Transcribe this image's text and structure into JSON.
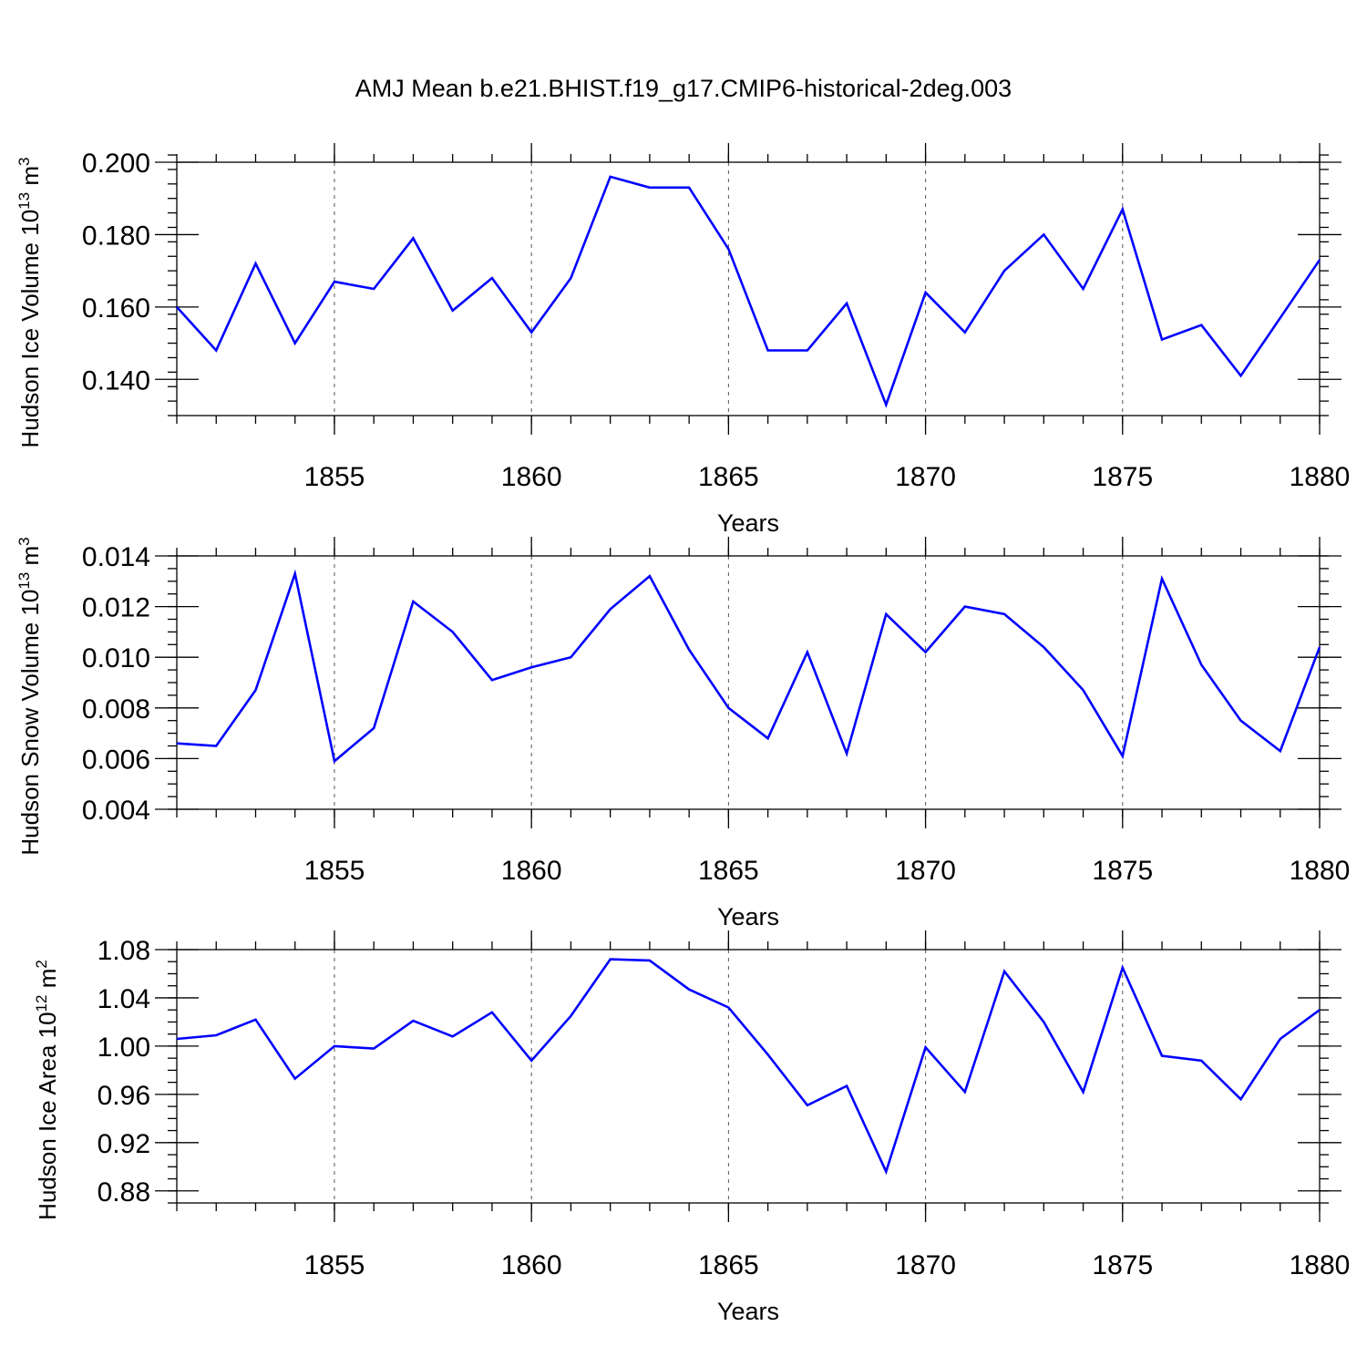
{
  "title": "AMJ Mean b.e21.BHIST.f19_g17.CMIP6-historical-2deg.003",
  "colors": {
    "series_line": "#0000ff",
    "frame": "#000000",
    "grid": "#555555"
  },
  "chart_data": [
    {
      "type": "line",
      "ylabel_main": "Hudson Ice Volume 10",
      "ylabel_exponent": "13",
      "ylabel_unit": " m",
      "ylabel_unit_exponent": "3",
      "xlabel": "Years",
      "xlim": [
        1851,
        1880
      ],
      "ylim": [
        0.13,
        0.2
      ],
      "x_ticks": [
        1855,
        1860,
        1865,
        1870,
        1875,
        1880
      ],
      "y_ticks": [
        0.2,
        0.18,
        0.16,
        0.14
      ],
      "y_tick_labels": [
        "0.200",
        "0.180",
        "0.160",
        "0.140"
      ],
      "y_minor_step": 0.004,
      "grid": "vertical dashed at major x ticks",
      "x": [
        1851,
        1852,
        1853,
        1854,
        1855,
        1856,
        1857,
        1858,
        1859,
        1860,
        1861,
        1862,
        1863,
        1864,
        1865,
        1866,
        1867,
        1868,
        1869,
        1870,
        1871,
        1872,
        1873,
        1874,
        1875,
        1876,
        1877,
        1878,
        1879,
        1880
      ],
      "values": [
        0.16,
        0.148,
        0.172,
        0.15,
        0.167,
        0.165,
        0.179,
        0.159,
        0.168,
        0.153,
        0.168,
        0.196,
        0.193,
        0.193,
        0.176,
        0.148,
        0.148,
        0.161,
        0.133,
        0.164,
        0.153,
        0.17,
        0.18,
        0.165,
        0.187,
        0.151,
        0.155,
        0.141,
        0.157,
        0.173
      ]
    },
    {
      "type": "line",
      "ylabel_main": "Hudson Snow Volume 10",
      "ylabel_exponent": "13",
      "ylabel_unit": " m",
      "ylabel_unit_exponent": "3",
      "xlabel": "Years",
      "xlim": [
        1851,
        1880
      ],
      "ylim": [
        0.004,
        0.014
      ],
      "x_ticks": [
        1855,
        1860,
        1865,
        1870,
        1875,
        1880
      ],
      "y_ticks": [
        0.014,
        0.012,
        0.01,
        0.008,
        0.006,
        0.004
      ],
      "y_tick_labels": [
        "0.014",
        "0.012",
        "0.010",
        "0.008",
        "0.006",
        "0.004"
      ],
      "y_minor_step": 0.0005,
      "grid": "vertical dashed at major x ticks",
      "x": [
        1851,
        1852,
        1853,
        1854,
        1855,
        1856,
        1857,
        1858,
        1859,
        1860,
        1861,
        1862,
        1863,
        1864,
        1865,
        1866,
        1867,
        1868,
        1869,
        1870,
        1871,
        1872,
        1873,
        1874,
        1875,
        1876,
        1877,
        1878,
        1879,
        1880
      ],
      "values": [
        0.0066,
        0.0065,
        0.0087,
        0.0133,
        0.0059,
        0.0072,
        0.0122,
        0.011,
        0.0091,
        0.0096,
        0.01,
        0.0119,
        0.0132,
        0.0103,
        0.008,
        0.0068,
        0.0102,
        0.0062,
        0.0117,
        0.0102,
        0.012,
        0.0117,
        0.0104,
        0.0087,
        0.0061,
        0.0131,
        0.0097,
        0.0075,
        0.0063,
        0.0104
      ]
    },
    {
      "type": "line",
      "ylabel_main": "Hudson Ice Area 10",
      "ylabel_exponent": "12",
      "ylabel_unit": " m",
      "ylabel_unit_exponent": "2",
      "xlabel": "Years",
      "xlim": [
        1851,
        1880
      ],
      "ylim": [
        0.87,
        1.08
      ],
      "x_ticks": [
        1855,
        1860,
        1865,
        1870,
        1875,
        1880
      ],
      "y_ticks": [
        1.08,
        1.04,
        1.0,
        0.96,
        0.92,
        0.88
      ],
      "y_tick_labels": [
        "1.08",
        "1.04",
        "1.00",
        "0.96",
        "0.92",
        "0.88"
      ],
      "y_minor_step": 0.01,
      "grid": "vertical dashed at major x ticks",
      "x": [
        1851,
        1852,
        1853,
        1854,
        1855,
        1856,
        1857,
        1858,
        1859,
        1860,
        1861,
        1862,
        1863,
        1864,
        1865,
        1866,
        1867,
        1868,
        1869,
        1870,
        1871,
        1872,
        1873,
        1874,
        1875,
        1876,
        1877,
        1878,
        1879,
        1880
      ],
      "values": [
        1.006,
        1.009,
        1.022,
        0.973,
        1.0,
        0.998,
        1.021,
        1.008,
        1.028,
        0.988,
        1.025,
        1.072,
        1.071,
        1.047,
        1.032,
        0.993,
        0.951,
        0.967,
        0.896,
        0.999,
        0.962,
        1.062,
        1.02,
        0.962,
        1.065,
        0.992,
        0.988,
        0.956,
        1.006,
        1.03
      ]
    }
  ]
}
